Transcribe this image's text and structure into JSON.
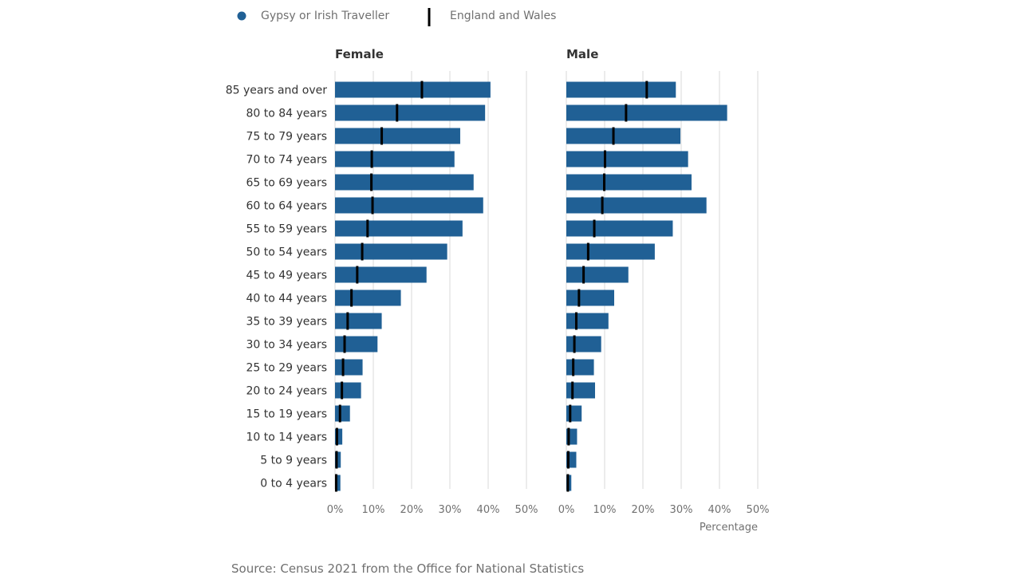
{
  "legend": {
    "series_a": "Gypsy or Irish Traveller",
    "series_b": "England and Wales"
  },
  "colors": {
    "bar": "#206095",
    "marker": "#000000",
    "grid": "#d9d9d9"
  },
  "x_axis_title": "Percentage",
  "source": "Source: Census 2021 from the Office for National Statistics",
  "chart_data": {
    "type": "bar",
    "orientation": "horizontal",
    "categories": [
      "85 years and over",
      "80 to 84 years",
      "75 to 79 years",
      "70 to 74 years",
      "65 to 69 years",
      "60 to 64 years",
      "55 to 59 years",
      "50 to 54 years",
      "45 to 49 years",
      "40 to 44 years",
      "35 to 39 years",
      "30 to 34 years",
      "25 to 29 years",
      "20 to 24 years",
      "15 to 19 years",
      "10 to 14 years",
      "5 to 9 years",
      "0 to 4 years"
    ],
    "xlim": [
      0,
      50
    ],
    "ticks": [
      "0%",
      "10%",
      "20%",
      "30%",
      "40%",
      "50%"
    ],
    "xlabel": "Percentage",
    "grid": true,
    "legend_position": "top-left",
    "panels": [
      {
        "title": "Female",
        "series": [
          {
            "name": "Gypsy or Irish Traveller",
            "marker": "bar",
            "values": [
              40.6,
              39.2,
              32.7,
              31.2,
              36.2,
              38.7,
              33.3,
              29.3,
              23.9,
              17.2,
              12.2,
              11.1,
              7.2,
              6.8,
              3.9,
              1.9,
              1.5,
              1.4
            ]
          },
          {
            "name": "England and Wales",
            "marker": "line",
            "values": [
              22.7,
              16.2,
              12.2,
              9.6,
              9.5,
              9.8,
              8.5,
              7.1,
              5.8,
              4.3,
              3.3,
              2.5,
              2.1,
              1.8,
              1.3,
              0.5,
              0.4,
              0.3
            ]
          }
        ]
      },
      {
        "title": "Male",
        "series": [
          {
            "name": "Gypsy or Irish Traveller",
            "marker": "bar",
            "values": [
              28.6,
              42.0,
              29.8,
              31.8,
              32.7,
              36.6,
              27.8,
              23.1,
              16.2,
              12.5,
              11.0,
              9.1,
              7.2,
              7.5,
              4.0,
              2.8,
              2.6,
              1.3
            ]
          },
          {
            "name": "England and Wales",
            "marker": "line",
            "values": [
              21.0,
              15.6,
              12.3,
              10.1,
              9.9,
              9.4,
              7.3,
              5.7,
              4.5,
              3.3,
              2.6,
              2.1,
              1.8,
              1.6,
              1.0,
              0.6,
              0.5,
              0.4
            ]
          }
        ]
      }
    ]
  }
}
